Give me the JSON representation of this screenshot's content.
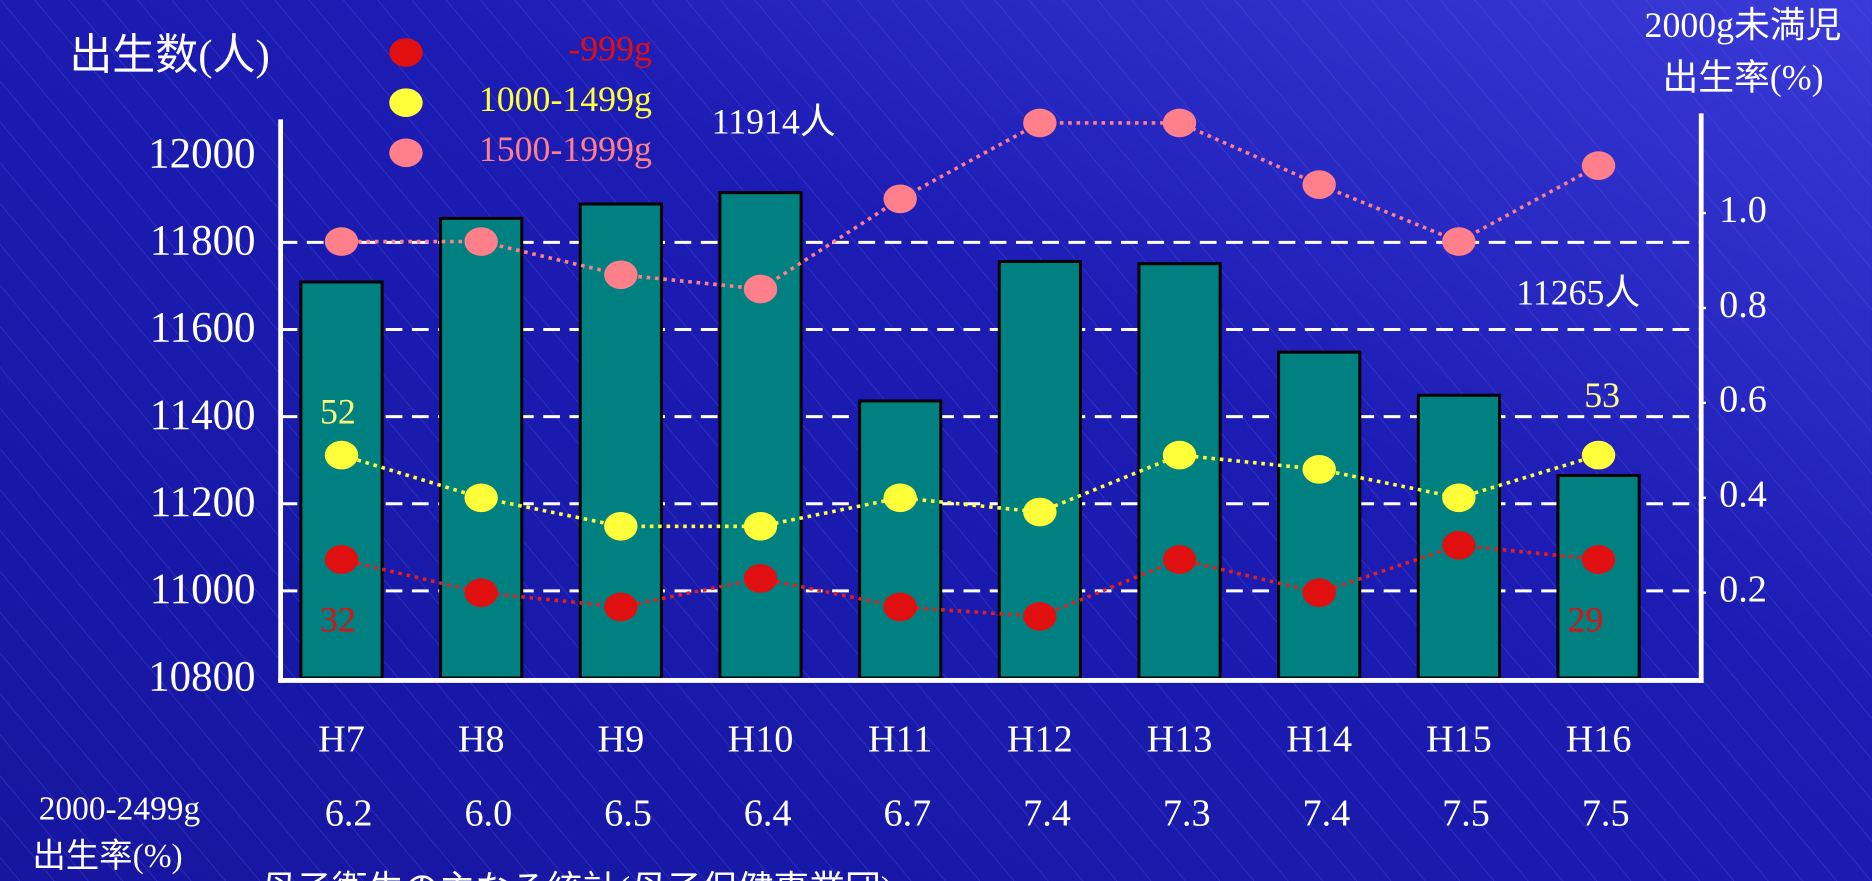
{
  "chart_data": {
    "type": "bar",
    "y_axis_label": "出生数(人)",
    "y2_axis_label": [
      "2000g未満児",
      "出生率(%)"
    ],
    "categories": [
      "H7",
      "H8",
      "H9",
      "H10",
      "H11",
      "H12",
      "H13",
      "H14",
      "H15",
      "H16"
    ],
    "values": [
      11709,
      11855,
      11888,
      11914,
      11436,
      11756,
      11751,
      11548,
      11449,
      11265
    ],
    "color": "#008080",
    "ylim": [
      10800,
      12000
    ],
    "yticks": [
      10800,
      11000,
      11200,
      11400,
      11600,
      11800,
      12000
    ],
    "y2lim": [
      0,
      1.2
    ],
    "y2ticks": [
      {
        "value": 0.2,
        "label": "0.2"
      },
      {
        "value": 0.4,
        "label": "0.4"
      },
      {
        "value": 0.6,
        "label": "0.6"
      },
      {
        "value": 0.8,
        "label": "0.8"
      },
      {
        "value": 1,
        "label": "1.0"
      }
    ],
    "grid": true,
    "series": [
      {
        "name": "-999g",
        "color": "#e01010",
        "line_color": "#e02020",
        "axis": "y2",
        "values": [
          0.27,
          0.2,
          0.17,
          0.23,
          0.17,
          0.15,
          0.27,
          0.2,
          0.3,
          0.27
        ]
      },
      {
        "name": "1000-1499g",
        "color": "#ffff3a",
        "line_color": "#ffff3a",
        "axis": "y2",
        "values": [
          0.49,
          0.4,
          0.34,
          0.34,
          0.4,
          0.37,
          0.49,
          0.46,
          0.4,
          0.49
        ]
      },
      {
        "name": "1500-1999g",
        "color": "#ff7f8a",
        "line_color": "#ff7f8a",
        "axis": "y2",
        "values": [
          0.94,
          0.94,
          0.87,
          0.84,
          1.03,
          1.19,
          1.19,
          1.06,
          0.94,
          1.1
        ]
      }
    ],
    "annotations": [
      {
        "text": "11914人",
        "color": "#ffffff"
      },
      {
        "text": "11265人",
        "color": "#ffffff"
      },
      {
        "text": "52",
        "color": "#ffff80"
      },
      {
        "text": "53",
        "color": "#ffff80"
      },
      {
        "text": "32",
        "color": "#e01010"
      },
      {
        "text": "29",
        "color": "#e01010"
      }
    ],
    "rate_row": {
      "label": [
        "2000-2499g",
        "出生率(%)"
      ],
      "values": [
        6.2,
        6.0,
        6.5,
        6.4,
        6.7,
        7.4,
        7.3,
        7.4,
        7.5,
        7.5
      ],
      "value_labels": [
        "6.2",
        "6.0",
        "6.5",
        "6.4",
        "6.7",
        "7.4",
        "7.3",
        "7.4",
        "7.5",
        "7.5"
      ]
    },
    "source": "母子衛生の主なる統計(母子保健事業団)"
  }
}
